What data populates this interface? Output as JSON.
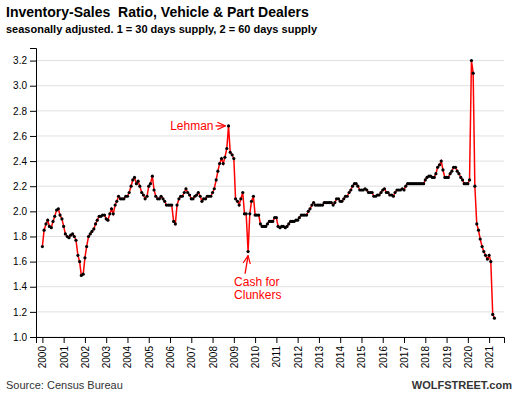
{
  "chart_data": {
    "type": "line",
    "title": "Inventory-Sales  Ratio, Vehicle & Part Dealers",
    "subtitle": "seasonally adjusted. 1 = 30 days supply, 2 = 60 days supply",
    "source": "Source: Census Bureau",
    "credit": "WOLFSTREET.com",
    "color": "#ff0000",
    "marker": "circle",
    "grid": true,
    "xlim": [
      1999.7,
      2021.7
    ],
    "xticks": [
      2000,
      2001,
      2002,
      2003,
      2004,
      2005,
      2006,
      2007,
      2008,
      2009,
      2010,
      2011,
      2012,
      2013,
      2014,
      2015,
      2016,
      2017,
      2018,
      2019,
      2020,
      2021
    ],
    "ylim": [
      1.0,
      3.3
    ],
    "yticks": [
      {
        "value": 1.0,
        "label": "1.0"
      },
      1.2,
      1.4,
      1.6,
      1.8,
      {
        "value": 2.0,
        "label": "2.0"
      },
      2.2,
      2.4,
      2.6,
      2.8,
      {
        "value": 3.0,
        "label": "3.0"
      },
      3.2
    ],
    "annotations": [
      {
        "text": "Lehman",
        "x": 2008.75,
        "y": 2.68
      },
      {
        "text": "Cash for\nClunkers",
        "x": 2009.67,
        "y": 1.68
      }
    ],
    "x": [
      2000.0,
      2000.08,
      2000.17,
      2000.25,
      2000.33,
      2000.42,
      2000.5,
      2000.58,
      2000.67,
      2000.75,
      2000.83,
      2000.92,
      2001.0,
      2001.08,
      2001.17,
      2001.25,
      2001.33,
      2001.42,
      2001.5,
      2001.58,
      2001.67,
      2001.75,
      2001.83,
      2001.92,
      2002.0,
      2002.08,
      2002.17,
      2002.25,
      2002.33,
      2002.42,
      2002.5,
      2002.58,
      2002.67,
      2002.75,
      2002.83,
      2002.92,
      2003.0,
      2003.08,
      2003.17,
      2003.25,
      2003.33,
      2003.42,
      2003.5,
      2003.58,
      2003.67,
      2003.75,
      2003.83,
      2003.92,
      2004.0,
      2004.08,
      2004.17,
      2004.25,
      2004.33,
      2004.42,
      2004.5,
      2004.58,
      2004.67,
      2004.75,
      2004.83,
      2004.92,
      2005.0,
      2005.08,
      2005.17,
      2005.25,
      2005.33,
      2005.42,
      2005.5,
      2005.58,
      2005.67,
      2005.75,
      2005.83,
      2005.92,
      2006.0,
      2006.08,
      2006.17,
      2006.25,
      2006.33,
      2006.42,
      2006.5,
      2006.58,
      2006.67,
      2006.75,
      2006.83,
      2006.92,
      2007.0,
      2007.08,
      2007.17,
      2007.25,
      2007.33,
      2007.42,
      2007.5,
      2007.58,
      2007.67,
      2007.75,
      2007.83,
      2007.92,
      2008.0,
      2008.08,
      2008.17,
      2008.25,
      2008.33,
      2008.42,
      2008.5,
      2008.58,
      2008.67,
      2008.75,
      2008.83,
      2008.92,
      2009.0,
      2009.08,
      2009.17,
      2009.25,
      2009.33,
      2009.42,
      2009.5,
      2009.58,
      2009.67,
      2009.75,
      2009.83,
      2009.92,
      2010.0,
      2010.08,
      2010.17,
      2010.25,
      2010.33,
      2010.42,
      2010.5,
      2010.58,
      2010.67,
      2010.75,
      2010.83,
      2010.92,
      2011.0,
      2011.08,
      2011.17,
      2011.25,
      2011.33,
      2011.42,
      2011.5,
      2011.58,
      2011.67,
      2011.75,
      2011.83,
      2011.92,
      2012.0,
      2012.08,
      2012.17,
      2012.25,
      2012.33,
      2012.42,
      2012.5,
      2012.58,
      2012.67,
      2012.75,
      2012.83,
      2012.92,
      2013.0,
      2013.08,
      2013.17,
      2013.25,
      2013.33,
      2013.42,
      2013.5,
      2013.58,
      2013.67,
      2013.75,
      2013.83,
      2013.92,
      2014.0,
      2014.08,
      2014.17,
      2014.25,
      2014.33,
      2014.42,
      2014.5,
      2014.58,
      2014.67,
      2014.75,
      2014.83,
      2014.92,
      2015.0,
      2015.08,
      2015.17,
      2015.25,
      2015.33,
      2015.42,
      2015.5,
      2015.58,
      2015.67,
      2015.75,
      2015.83,
      2015.92,
      2016.0,
      2016.08,
      2016.17,
      2016.25,
      2016.33,
      2016.42,
      2016.5,
      2016.58,
      2016.67,
      2016.75,
      2016.83,
      2016.92,
      2017.0,
      2017.08,
      2017.17,
      2017.25,
      2017.33,
      2017.42,
      2017.5,
      2017.58,
      2017.67,
      2017.75,
      2017.83,
      2017.92,
      2018.0,
      2018.08,
      2018.17,
      2018.25,
      2018.33,
      2018.42,
      2018.5,
      2018.58,
      2018.67,
      2018.75,
      2018.83,
      2018.92,
      2019.0,
      2019.08,
      2019.17,
      2019.25,
      2019.33,
      2019.42,
      2019.5,
      2019.58,
      2019.67,
      2019.75,
      2019.83,
      2019.92,
      2020.0,
      2020.08,
      2020.17,
      2020.25,
      2020.33,
      2020.42,
      2020.5,
      2020.58,
      2020.67,
      2020.75,
      2020.83,
      2020.92,
      2021.0,
      2021.08,
      2021.17,
      2021.25
    ],
    "values": [
      1.72,
      1.85,
      1.9,
      1.93,
      1.88,
      1.87,
      1.92,
      1.96,
      2.01,
      2.02,
      1.97,
      1.94,
      1.88,
      1.82,
      1.8,
      1.79,
      1.81,
      1.82,
      1.8,
      1.77,
      1.65,
      1.6,
      1.49,
      1.5,
      1.63,
      1.72,
      1.8,
      1.82,
      1.84,
      1.86,
      1.9,
      1.93,
      1.96,
      1.96,
      1.97,
      1.97,
      1.94,
      1.93,
      1.98,
      2.02,
      1.98,
      2.05,
      2.08,
      2.12,
      2.1,
      2.1,
      2.1,
      2.12,
      2.12,
      2.15,
      2.2,
      2.25,
      2.27,
      2.22,
      2.24,
      2.2,
      2.15,
      2.13,
      2.1,
      2.12,
      2.2,
      2.22,
      2.28,
      2.17,
      2.12,
      2.1,
      2.1,
      2.12,
      2.1,
      2.08,
      2.05,
      2.05,
      2.05,
      2.05,
      1.92,
      1.9,
      2.05,
      2.1,
      2.12,
      2.12,
      2.15,
      2.18,
      2.15,
      2.13,
      2.1,
      2.1,
      2.12,
      2.13,
      2.15,
      2.12,
      2.08,
      2.1,
      2.1,
      2.12,
      2.12,
      2.12,
      2.15,
      2.18,
      2.25,
      2.32,
      2.38,
      2.42,
      2.38,
      2.43,
      2.5,
      2.68,
      2.47,
      2.45,
      2.42,
      2.1,
      2.08,
      2.05,
      2.1,
      2.15,
      1.98,
      1.98,
      1.68,
      1.98,
      2.08,
      2.12,
      1.97,
      1.97,
      1.97,
      1.9,
      1.88,
      1.88,
      1.88,
      1.9,
      1.92,
      1.92,
      1.92,
      1.95,
      1.95,
      1.88,
      1.87,
      1.88,
      1.88,
      1.87,
      1.88,
      1.9,
      1.92,
      1.92,
      1.92,
      1.93,
      1.93,
      1.95,
      1.97,
      1.97,
      1.97,
      1.97,
      2.0,
      2.02,
      2.05,
      2.07,
      2.05,
      2.05,
      2.05,
      2.05,
      2.05,
      2.07,
      2.07,
      2.07,
      2.07,
      2.07,
      2.05,
      2.07,
      2.1,
      2.1,
      2.08,
      2.08,
      2.1,
      2.12,
      2.12,
      2.15,
      2.17,
      2.2,
      2.22,
      2.22,
      2.2,
      2.17,
      2.17,
      2.17,
      2.18,
      2.17,
      2.15,
      2.15,
      2.15,
      2.12,
      2.12,
      2.13,
      2.13,
      2.15,
      2.17,
      2.18,
      2.15,
      2.15,
      2.13,
      2.13,
      2.12,
      2.15,
      2.17,
      2.17,
      2.17,
      2.18,
      2.17,
      2.2,
      2.22,
      2.22,
      2.22,
      2.22,
      2.22,
      2.22,
      2.22,
      2.22,
      2.22,
      2.22,
      2.25,
      2.27,
      2.28,
      2.28,
      2.27,
      2.27,
      2.3,
      2.35,
      2.37,
      2.4,
      2.33,
      2.27,
      2.27,
      2.27,
      2.3,
      2.32,
      2.35,
      2.35,
      2.32,
      2.3,
      2.27,
      2.25,
      2.22,
      2.22,
      2.22,
      2.25,
      3.2,
      3.1,
      2.2,
      1.9,
      1.85,
      1.78,
      1.72,
      1.68,
      1.65,
      1.62,
      1.65,
      1.6,
      1.18,
      1.15
    ]
  }
}
